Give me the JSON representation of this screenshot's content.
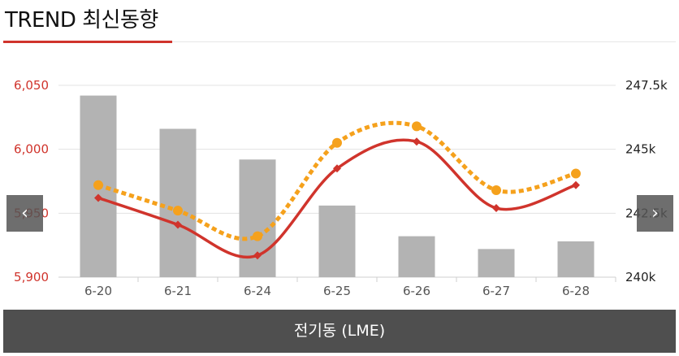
{
  "header": {
    "title": "TREND 최신동향"
  },
  "nav": {
    "prev_glyph": "‹",
    "next_glyph": "›"
  },
  "footer": {
    "label": "전기동 (LME)"
  },
  "colors": {
    "accent": "#d0342c",
    "bar": "#b3b3b3",
    "line_dotted": "#f5a11c",
    "footer_bg": "#4f4f4f"
  },
  "chart_data": {
    "type": "bar",
    "categories": [
      "6-20",
      "6-21",
      "6-24",
      "6-25",
      "6-26",
      "6-27",
      "6-28"
    ],
    "left_axis": {
      "ticks": [
        "6,050",
        "6,000",
        "5,950",
        "5,900"
      ],
      "tick_values": [
        6050,
        6000,
        5950,
        5900
      ],
      "ylim": [
        5900,
        6050
      ]
    },
    "right_axis": {
      "ticks": [
        "247.5k",
        "245k",
        "242.5k",
        "240k"
      ],
      "tick_values": [
        247.5,
        245,
        242.5,
        240
      ],
      "ylim": [
        240,
        247.5
      ]
    },
    "bars": {
      "axis": "right",
      "values": [
        247.1,
        245.8,
        244.6,
        242.8,
        241.6,
        241.1,
        241.4
      ]
    },
    "lines": [
      {
        "style": "solid",
        "color": "#d0342c",
        "axis": "left",
        "values": [
          5962,
          5941,
          5917,
          5985,
          6006,
          5954,
          5972
        ]
      },
      {
        "style": "dotted",
        "color": "#f5a11c",
        "axis": "left",
        "values": [
          5972,
          5952,
          5932,
          6005,
          6018,
          5968,
          5981
        ]
      }
    ],
    "grid": true
  }
}
